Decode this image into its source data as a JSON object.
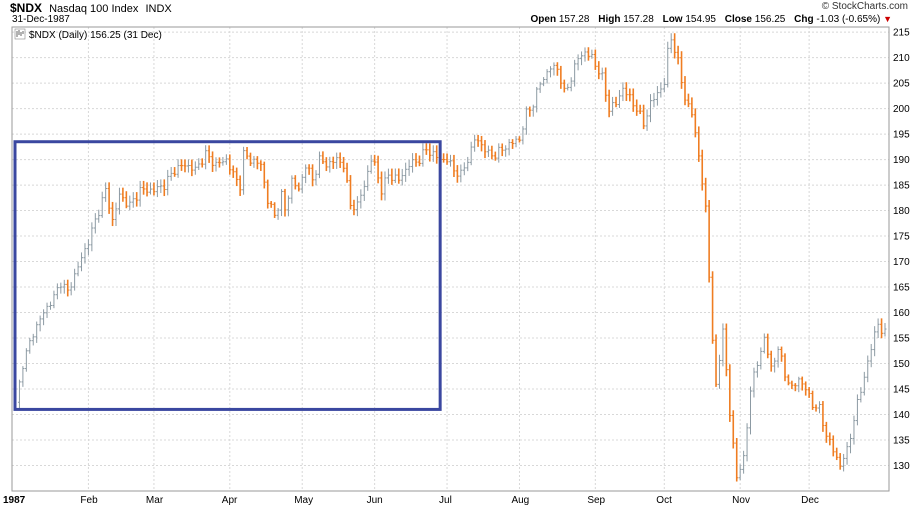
{
  "header": {
    "symbol": "$NDX",
    "name": "Nasdaq 100 Index",
    "exchange": "INDX",
    "date": "31-Dec-1987",
    "brand": "© StockCharts.com",
    "open_label": "Open",
    "open": "157.28",
    "high_label": "High",
    "high": "157.28",
    "low_label": "Low",
    "low": "154.95",
    "close_label": "Close",
    "close": "156.25",
    "chg_label": "Chg",
    "chg": "-1.03 (-0.65%)"
  },
  "legend": {
    "icon": "price-bars-icon",
    "text": "$NDX (Daily) 156.25 (31 Dec)"
  },
  "colors": {
    "up": "#8c9aa3",
    "down": "#ef7d22",
    "grid": "#d8d8d8",
    "box": "#3a47a0"
  },
  "chart_data": {
    "type": "ohlc",
    "title": "$NDX Nasdaq 100 Index",
    "ylim": [
      125,
      216
    ],
    "y_ticks": [
      130,
      135,
      140,
      145,
      150,
      155,
      160,
      165,
      170,
      175,
      180,
      185,
      190,
      195,
      200,
      205,
      210,
      215
    ],
    "x_tick_labels": [
      "1987",
      "Feb",
      "Mar",
      "Apr",
      "May",
      "Jun",
      "Jul",
      "Aug",
      "Sep",
      "Oct",
      "Nov",
      "Dec"
    ],
    "x_tick_days": [
      0,
      21,
      40,
      62,
      83,
      104,
      125,
      146,
      168,
      188,
      210,
      230
    ],
    "total_days": 252,
    "close_path": [
      [
        0,
        142
      ],
      [
        2,
        150
      ],
      [
        5,
        156
      ],
      [
        8,
        160
      ],
      [
        11,
        163
      ],
      [
        13,
        166
      ],
      [
        15,
        164
      ],
      [
        18,
        169
      ],
      [
        21,
        174
      ],
      [
        24,
        180
      ],
      [
        26,
        184
      ],
      [
        28,
        178
      ],
      [
        30,
        183
      ],
      [
        33,
        181
      ],
      [
        36,
        184
      ],
      [
        38,
        184
      ],
      [
        40,
        184
      ],
      [
        43,
        185
      ],
      [
        46,
        188
      ],
      [
        49,
        189
      ],
      [
        52,
        188
      ],
      [
        55,
        191
      ],
      [
        58,
        189
      ],
      [
        61,
        190
      ],
      [
        63,
        187
      ],
      [
        65,
        185
      ],
      [
        66,
        191
      ],
      [
        68,
        190
      ],
      [
        71,
        189
      ],
      [
        73,
        182
      ],
      [
        75,
        179
      ],
      [
        77,
        183
      ],
      [
        78,
        180
      ],
      [
        80,
        186
      ],
      [
        82,
        184
      ],
      [
        84,
        189
      ],
      [
        86,
        186
      ],
      [
        88,
        190
      ],
      [
        90,
        189
      ],
      [
        93,
        190
      ],
      [
        95,
        189
      ],
      [
        97,
        181
      ],
      [
        99,
        181
      ],
      [
        101,
        185
      ],
      [
        103,
        190
      ],
      [
        104,
        189
      ],
      [
        106,
        184
      ],
      [
        108,
        187
      ],
      [
        111,
        186
      ],
      [
        114,
        189
      ],
      [
        117,
        190
      ],
      [
        119,
        192
      ],
      [
        121,
        191
      ],
      [
        123,
        190
      ],
      [
        125,
        190
      ],
      [
        127,
        188
      ],
      [
        129,
        187
      ],
      [
        131,
        190
      ],
      [
        133,
        194
      ],
      [
        135,
        193
      ],
      [
        137,
        191
      ],
      [
        139,
        191
      ],
      [
        141,
        192
      ],
      [
        143,
        193
      ],
      [
        146,
        194
      ],
      [
        148,
        199
      ],
      [
        150,
        201
      ],
      [
        152,
        205
      ],
      [
        155,
        208
      ],
      [
        157,
        208
      ],
      [
        159,
        203
      ],
      [
        161,
        206
      ],
      [
        163,
        210
      ],
      [
        165,
        211
      ],
      [
        167,
        210
      ],
      [
        170,
        206
      ],
      [
        172,
        200
      ],
      [
        174,
        201
      ],
      [
        176,
        204
      ],
      [
        178,
        202
      ],
      [
        180,
        200
      ],
      [
        182,
        197
      ],
      [
        184,
        201
      ],
      [
        186,
        203
      ],
      [
        188,
        205
      ],
      [
        189,
        211
      ],
      [
        190,
        214
      ],
      [
        192,
        209
      ],
      [
        194,
        202
      ],
      [
        196,
        199
      ],
      [
        198,
        191
      ],
      [
        200,
        180
      ],
      [
        202,
        155
      ],
      [
        203,
        145
      ],
      [
        205,
        157
      ],
      [
        207,
        140
      ],
      [
        209,
        128
      ],
      [
        211,
        131
      ],
      [
        213,
        145
      ],
      [
        215,
        150
      ],
      [
        217,
        155
      ],
      [
        219,
        149
      ],
      [
        221,
        153
      ],
      [
        223,
        148
      ],
      [
        225,
        145
      ],
      [
        227,
        147
      ],
      [
        229,
        145
      ],
      [
        231,
        142
      ],
      [
        233,
        141
      ],
      [
        235,
        136
      ],
      [
        237,
        133
      ],
      [
        239,
        130
      ],
      [
        241,
        133
      ],
      [
        243,
        139
      ],
      [
        245,
        145
      ],
      [
        247,
        150
      ],
      [
        249,
        156
      ],
      [
        250,
        158
      ],
      [
        251,
        156
      ],
      [
        252,
        156
      ]
    ],
    "annotation_box": {
      "start_day": 0,
      "end_day": 123,
      "low": 141,
      "high": 193.5
    }
  }
}
